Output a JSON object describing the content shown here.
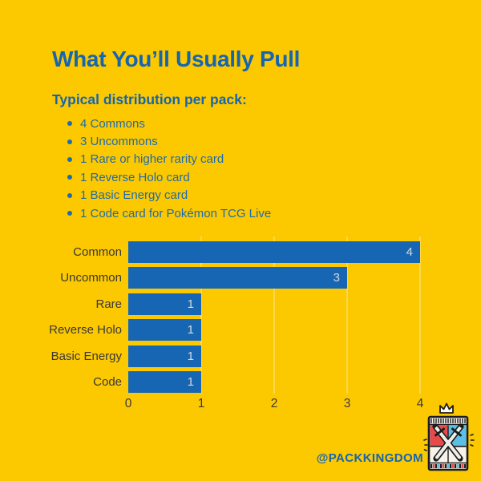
{
  "page": {
    "background_color": "#FCC800",
    "accent_blue": "#1565B0",
    "bar_blue": "#1766B4",
    "dark_text": "#39393B"
  },
  "title": "What You’ll Usually Pull",
  "subtitle": "Typical distribution per pack:",
  "bullets": [
    "4 Commons",
    "3 Uncommons",
    "1 Rare or higher rarity card",
    "1 Reverse Holo card",
    "1 Basic Energy card",
    "1 Code card for Pokémon TCG Live"
  ],
  "chart_data": {
    "type": "bar",
    "orientation": "horizontal",
    "title": "",
    "xlabel": "",
    "ylabel": "",
    "categories": [
      "Common",
      "Uncommon",
      "Rare",
      "Reverse Holo",
      "Basic Energy",
      "Code"
    ],
    "values": [
      4,
      3,
      1,
      1,
      1,
      1
    ],
    "xlim": [
      0,
      4
    ],
    "x_ticks": [
      0,
      1,
      2,
      3,
      4
    ],
    "grid": true,
    "legend": false,
    "bar_color": "#1766B4",
    "value_label_color": "#D6D9DC",
    "value_labels_inside_bars": true
  },
  "footer": {
    "handle": "@PACKKINGDOM"
  },
  "icons": {
    "logo": "pack-kingdom-crossed-swords-pack",
    "crown": "crown-icon",
    "logo_colors": {
      "red": "#E84A4A",
      "blue": "#5BC0E8",
      "outline": "#1C1C1C",
      "paper": "#F7F3EA"
    }
  }
}
